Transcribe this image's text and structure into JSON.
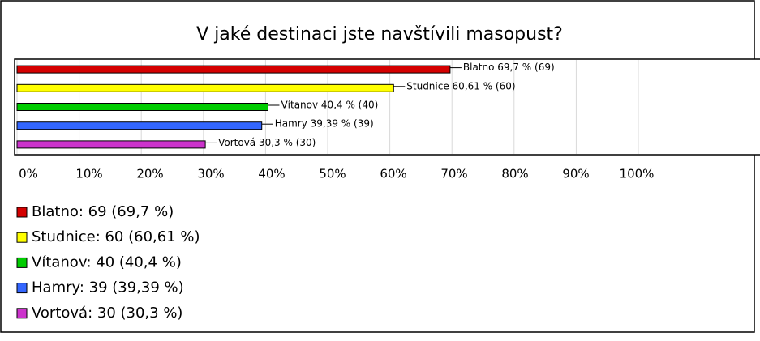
{
  "chart_data": {
    "type": "bar",
    "orientation": "horizontal",
    "title": "V jaké destinaci jste navštívili masopust?",
    "categories": [
      "Blatno",
      "Studnice",
      "Vítanov",
      "Hamry",
      "Vortová"
    ],
    "values": [
      69.7,
      60.61,
      40.4,
      39.39,
      30.3
    ],
    "value_labels": [
      "Blatno 69,7 % (69)",
      "Studnice 60,61 % (60)",
      "Vítanov 40,4 % (40)",
      "Hamry 39,39 % (39)",
      "Vortová 30,3 % (30)"
    ],
    "legend_labels": [
      "Blatno: 69 (69,7 %)",
      "Studnice: 60 (60,61 %)",
      "Vítanov: 40 (40,4 %)",
      "Hamry: 39 (39,39 %)",
      "Vortová: 30 (30,3 %)"
    ],
    "colors": [
      "#d40000",
      "#ffff00",
      "#00cc00",
      "#3366ff",
      "#cc33cc"
    ],
    "xlim": [
      0,
      100
    ],
    "xticks": [
      {
        "value": 0,
        "label": "0%"
      },
      {
        "value": 10,
        "label": "10%"
      },
      {
        "value": 20,
        "label": "20%"
      },
      {
        "value": 30,
        "label": "30%"
      },
      {
        "value": 40,
        "label": "40%"
      },
      {
        "value": 50,
        "label": "50%"
      },
      {
        "value": 60,
        "label": "60%"
      },
      {
        "value": 70,
        "label": "70%"
      },
      {
        "value": 80,
        "label": "80%"
      },
      {
        "value": 90,
        "label": "90%"
      },
      {
        "value": 100,
        "label": "100%"
      }
    ],
    "grid": true
  }
}
